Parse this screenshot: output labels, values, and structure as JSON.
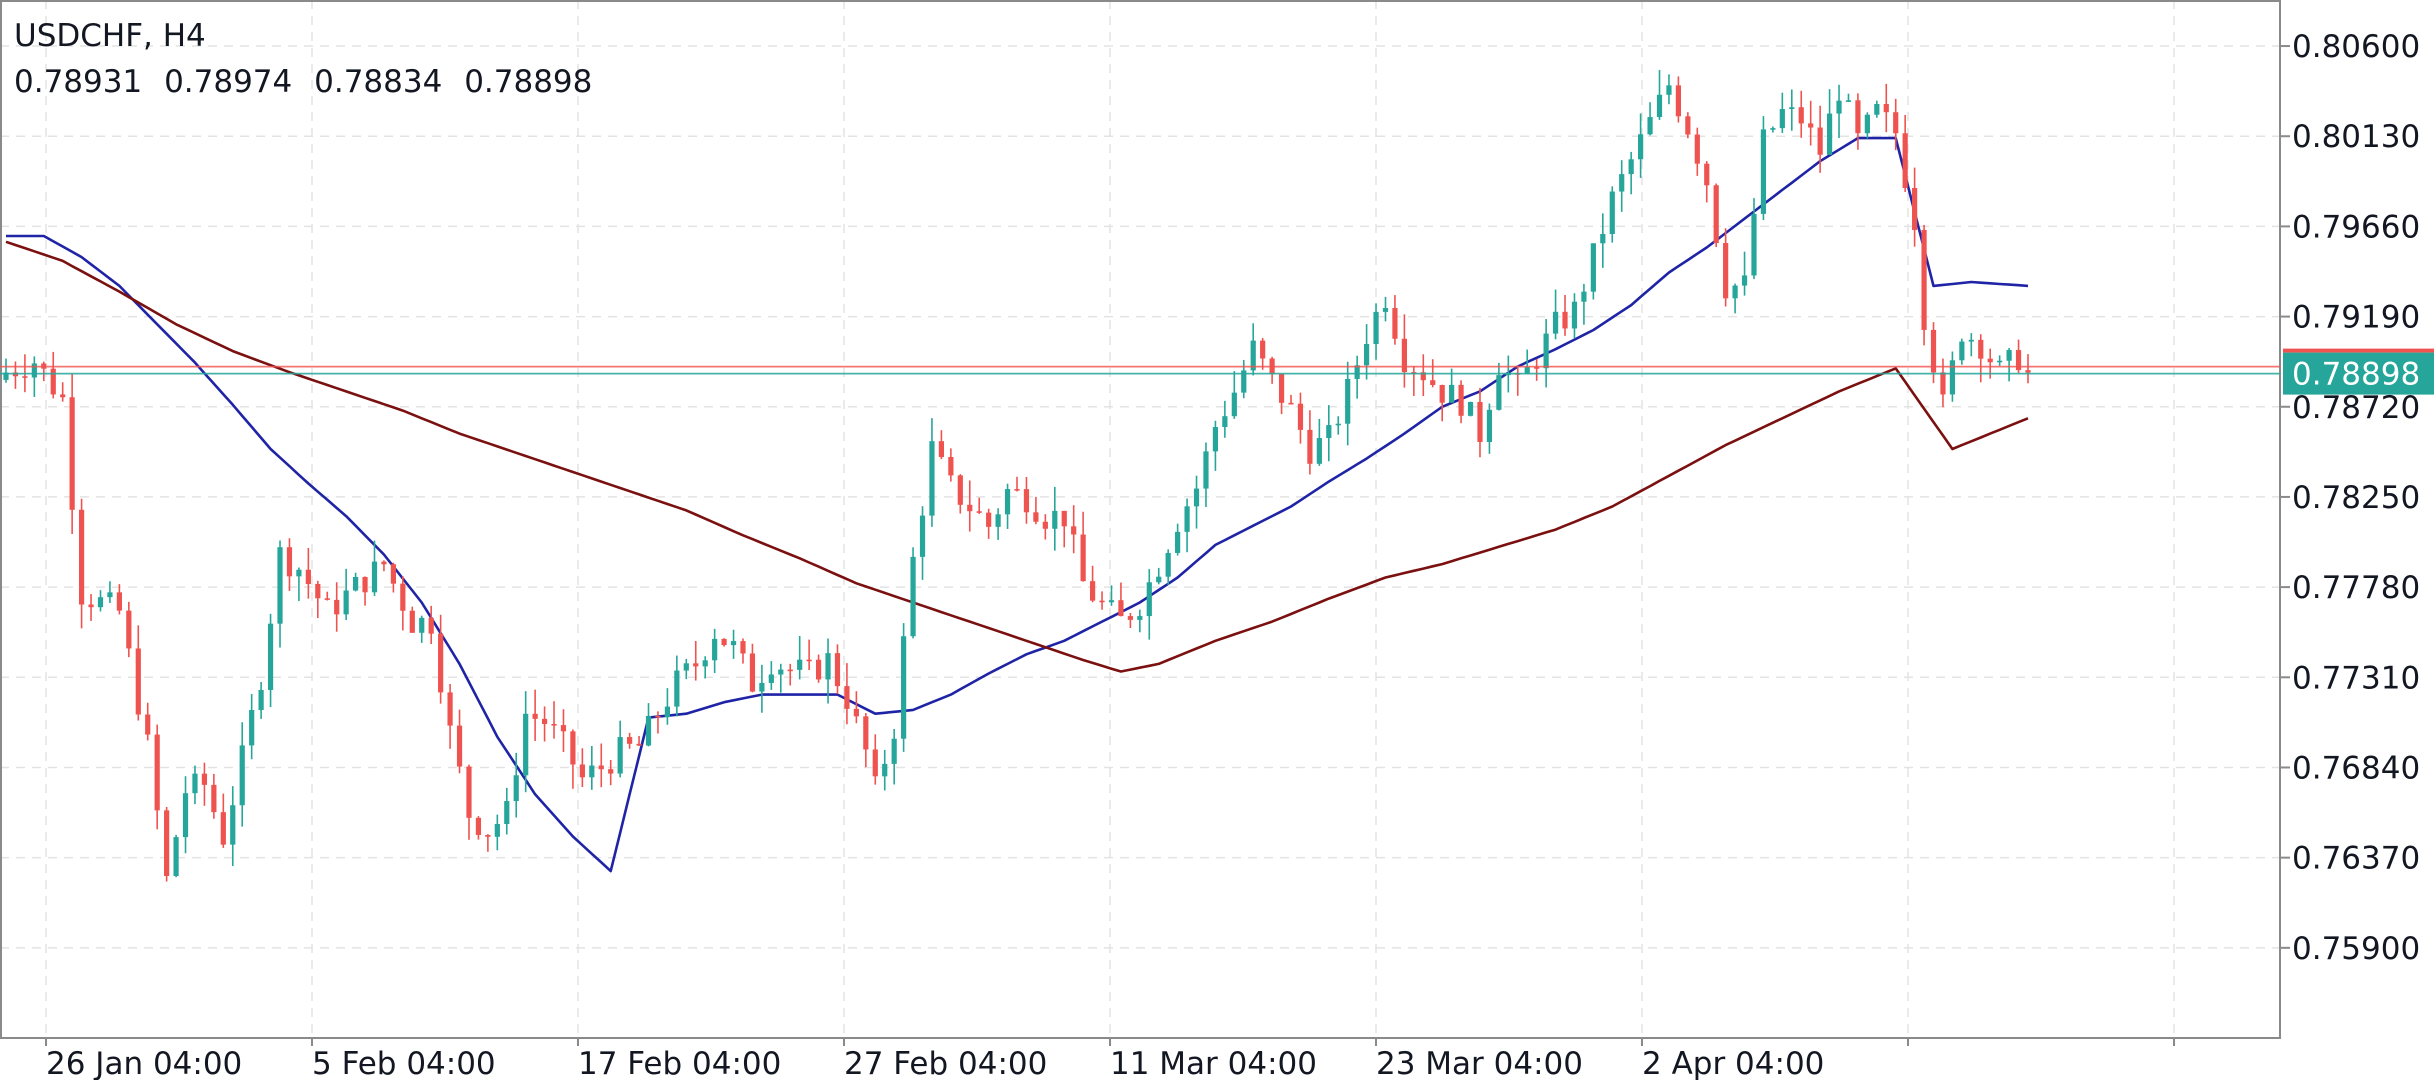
{
  "header": {
    "symbol": "USDCHF, H4",
    "ohlc": {
      "open": "0.78931",
      "high": "0.78974",
      "low": "0.78834",
      "close": "0.78898"
    }
  },
  "colors": {
    "up": "#26a69a",
    "down": "#ef5350",
    "ma_fast": "#1f24a6",
    "ma_slow": "#7b1010",
    "price_tag": "#26a69a",
    "grid": "#e3e3e3"
  },
  "chart_data": {
    "type": "candlestick",
    "symbol": "USDCHF",
    "timeframe": "H4",
    "grid": true,
    "ylim": [
      0.7543,
      0.8084
    ],
    "y_ticks": [
      "0.80600",
      "0.80130",
      "0.79660",
      "0.79190",
      "0.78720",
      "0.78250",
      "0.77780",
      "0.77310",
      "0.76840",
      "0.76370",
      "0.75900"
    ],
    "x_ticks": [
      "26 Jan 04:00",
      "5 Feb 04:00",
      "17 Feb 04:00",
      "27 Feb 04:00",
      "11 Mar 04:00",
      "23 Mar 04:00",
      "2 Apr 04:00"
    ],
    "last_price": {
      "label": "0.78898",
      "value": 0.78898
    },
    "close_path": [
      [
        0,
        0.789
      ],
      [
        3,
        0.7896
      ],
      [
        6,
        0.7876
      ],
      [
        8,
        0.7775
      ],
      [
        12,
        0.7765
      ],
      [
        15,
        0.7695
      ],
      [
        17,
        0.7625
      ],
      [
        19,
        0.7672
      ],
      [
        21,
        0.7675
      ],
      [
        23,
        0.7648
      ],
      [
        25,
        0.7688
      ],
      [
        27,
        0.7732
      ],
      [
        29,
        0.7795
      ],
      [
        31,
        0.7788
      ],
      [
        34,
        0.7765
      ],
      [
        37,
        0.7778
      ],
      [
        40,
        0.779
      ],
      [
        43,
        0.776
      ],
      [
        45,
        0.776
      ],
      [
        47,
        0.7702
      ],
      [
        49,
        0.766
      ],
      [
        51,
        0.7651
      ],
      [
        53,
        0.766
      ],
      [
        55,
        0.7712
      ],
      [
        57,
        0.7708
      ],
      [
        59,
        0.7695
      ],
      [
        61,
        0.7678
      ],
      [
        63,
        0.7684
      ],
      [
        65,
        0.7692
      ],
      [
        67,
        0.7695
      ],
      [
        69,
        0.7712
      ],
      [
        71,
        0.7728
      ],
      [
        73,
        0.7738
      ],
      [
        75,
        0.7755
      ],
      [
        77,
        0.7746
      ],
      [
        79,
        0.7728
      ],
      [
        81,
        0.774
      ],
      [
        83,
        0.7735
      ],
      [
        85,
        0.7733
      ],
      [
        87,
        0.774
      ],
      [
        89,
        0.772
      ],
      [
        91,
        0.7692
      ],
      [
        92,
        0.7672
      ],
      [
        94,
        0.7705
      ],
      [
        96,
        0.7792
      ],
      [
        98,
        0.785
      ],
      [
        100,
        0.783
      ],
      [
        102,
        0.782
      ],
      [
        104,
        0.781
      ],
      [
        106,
        0.7828
      ],
      [
        108,
        0.7825
      ],
      [
        110,
        0.7815
      ],
      [
        112,
        0.7815
      ],
      [
        114,
        0.778
      ],
      [
        116,
        0.7768
      ],
      [
        118,
        0.776
      ],
      [
        120,
        0.777
      ],
      [
        122,
        0.779
      ],
      [
        124,
        0.7813
      ],
      [
        126,
        0.783
      ],
      [
        128,
        0.7862
      ],
      [
        130,
        0.788
      ],
      [
        132,
        0.7902
      ],
      [
        134,
        0.7885
      ],
      [
        136,
        0.787
      ],
      [
        138,
        0.785
      ],
      [
        140,
        0.7855
      ],
      [
        142,
        0.788
      ],
      [
        144,
        0.791
      ],
      [
        146,
        0.793
      ],
      [
        148,
        0.7898
      ],
      [
        150,
        0.789
      ],
      [
        152,
        0.788
      ],
      [
        154,
        0.7875
      ],
      [
        156,
        0.7858
      ],
      [
        158,
        0.7895
      ],
      [
        160,
        0.7882
      ],
      [
        162,
        0.7898
      ],
      [
        164,
        0.7914
      ],
      [
        166,
        0.7922
      ],
      [
        168,
        0.795
      ],
      [
        170,
        0.798
      ],
      [
        172,
        0.8
      ],
      [
        174,
        0.802
      ],
      [
        176,
        0.804
      ],
      [
        178,
        0.8018
      ],
      [
        180,
        0.799
      ],
      [
        182,
        0.7935
      ],
      [
        184,
        0.7935
      ],
      [
        186,
        0.801
      ],
      [
        188,
        0.8025
      ],
      [
        190,
        0.8022
      ],
      [
        192,
        0.8005
      ],
      [
        194,
        0.8038
      ],
      [
        196,
        0.801
      ],
      [
        198,
        0.8025
      ],
      [
        200,
        0.8015
      ],
      [
        202,
        0.797
      ],
      [
        203,
        0.792
      ],
      [
        205,
        0.7872
      ],
      [
        207,
        0.7912
      ],
      [
        209,
        0.7905
      ],
      [
        211,
        0.789
      ],
      [
        213,
        0.7898
      ],
      [
        214,
        0.78898
      ]
    ],
    "series": [
      {
        "values": [
          [
            0,
            0.7961
          ],
          [
            4,
            0.7961
          ],
          [
            8,
            0.795
          ],
          [
            12,
            0.7935
          ],
          [
            16,
            0.7915
          ],
          [
            20,
            0.7895
          ],
          [
            24,
            0.7873
          ],
          [
            28,
            0.785
          ],
          [
            32,
            0.7832
          ],
          [
            36,
            0.7815
          ],
          [
            40,
            0.7795
          ],
          [
            44,
            0.777
          ],
          [
            48,
            0.7738
          ],
          [
            52,
            0.77
          ],
          [
            56,
            0.767
          ],
          [
            60,
            0.7648
          ],
          [
            64,
            0.763
          ],
          [
            68,
            0.771
          ],
          [
            72,
            0.7712
          ],
          [
            76,
            0.7718
          ],
          [
            80,
            0.7722
          ],
          [
            84,
            0.7722
          ],
          [
            88,
            0.7722
          ],
          [
            92,
            0.7712
          ],
          [
            96,
            0.7714
          ],
          [
            100,
            0.7722
          ],
          [
            104,
            0.7733
          ],
          [
            108,
            0.7743
          ],
          [
            112,
            0.775
          ],
          [
            116,
            0.776
          ],
          [
            120,
            0.777
          ],
          [
            124,
            0.7783
          ],
          [
            128,
            0.78
          ],
          [
            132,
            0.781
          ],
          [
            136,
            0.782
          ],
          [
            140,
            0.7833
          ],
          [
            144,
            0.7845
          ],
          [
            148,
            0.7858
          ],
          [
            152,
            0.7872
          ],
          [
            156,
            0.788
          ],
          [
            160,
            0.7893
          ],
          [
            164,
            0.7902
          ],
          [
            168,
            0.7912
          ],
          [
            172,
            0.7925
          ],
          [
            176,
            0.7942
          ],
          [
            180,
            0.7955
          ],
          [
            184,
            0.797
          ],
          [
            188,
            0.7985
          ],
          [
            192,
            0.8
          ],
          [
            196,
            0.8012
          ],
          [
            200,
            0.8012
          ],
          [
            204,
            0.7935
          ],
          [
            208,
            0.7937
          ],
          [
            214,
            0.7935
          ]
        ]
      },
      {
        "values": [
          [
            0,
            0.7958
          ],
          [
            6,
            0.7948
          ],
          [
            12,
            0.7932
          ],
          [
            18,
            0.7915
          ],
          [
            24,
            0.7901
          ],
          [
            30,
            0.789
          ],
          [
            36,
            0.788
          ],
          [
            42,
            0.787
          ],
          [
            48,
            0.7858
          ],
          [
            54,
            0.7848
          ],
          [
            60,
            0.7838
          ],
          [
            66,
            0.7828
          ],
          [
            72,
            0.7818
          ],
          [
            78,
            0.7805
          ],
          [
            84,
            0.7793
          ],
          [
            90,
            0.778
          ],
          [
            96,
            0.777
          ],
          [
            102,
            0.776
          ],
          [
            108,
            0.775
          ],
          [
            114,
            0.774
          ],
          [
            118,
            0.7734
          ],
          [
            122,
            0.7738
          ],
          [
            128,
            0.775
          ],
          [
            134,
            0.776
          ],
          [
            140,
            0.7772
          ],
          [
            146,
            0.7783
          ],
          [
            152,
            0.779
          ],
          [
            158,
            0.7799
          ],
          [
            164,
            0.7808
          ],
          [
            170,
            0.782
          ],
          [
            176,
            0.7836
          ],
          [
            182,
            0.7852
          ],
          [
            188,
            0.7866
          ],
          [
            194,
            0.788
          ],
          [
            200,
            0.7892
          ],
          [
            206,
            0.785
          ],
          [
            214,
            0.7866
          ]
        ]
      }
    ]
  }
}
